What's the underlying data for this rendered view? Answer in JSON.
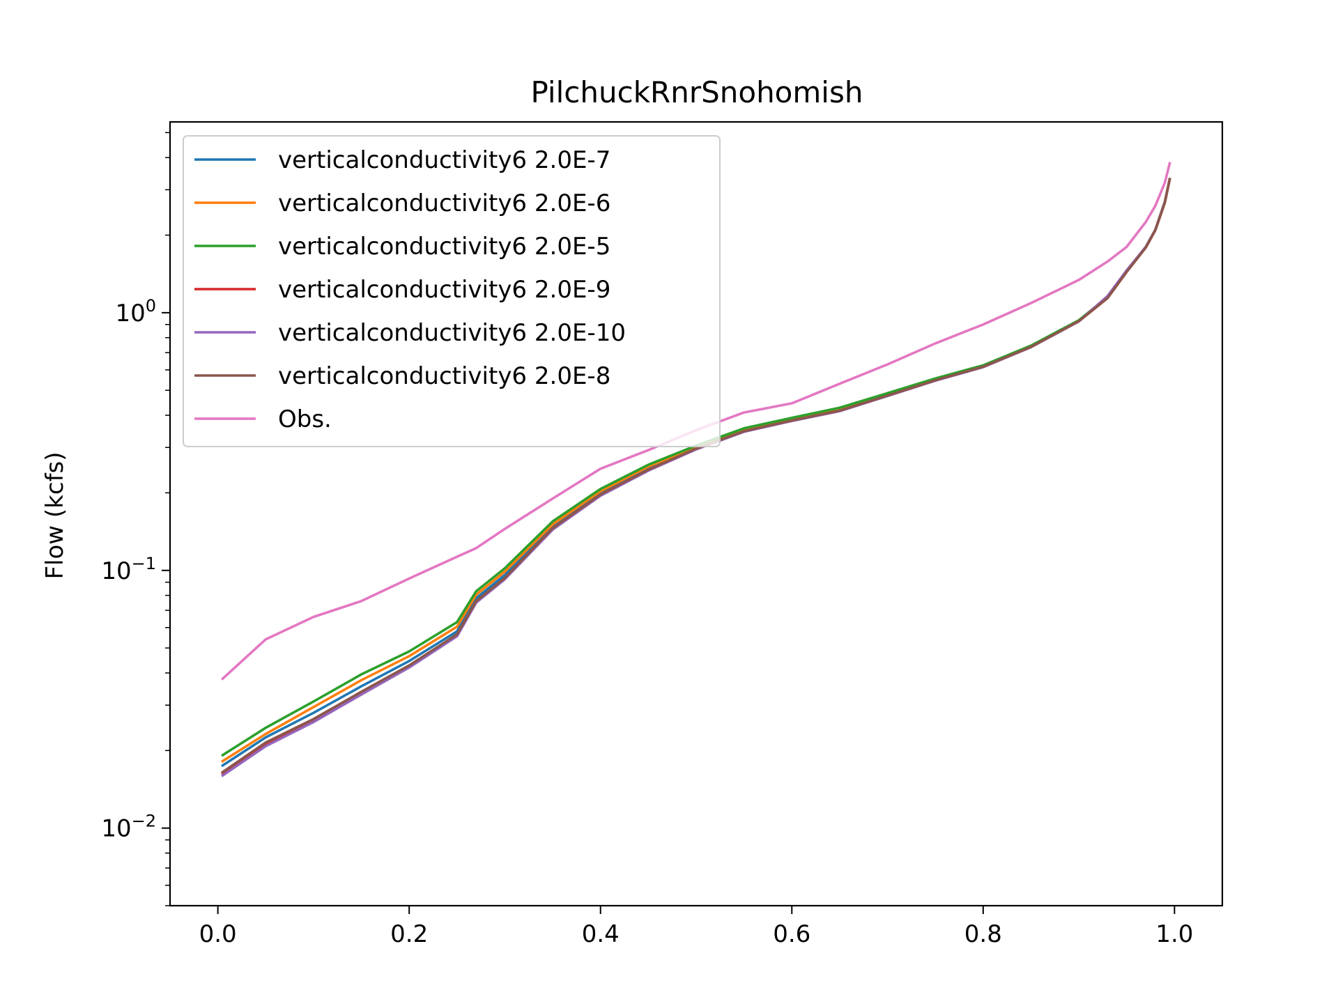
{
  "chart_data": {
    "type": "line",
    "title": "PilchuckRnrSnohomish",
    "xlabel": "",
    "ylabel": "Flow (kcfs)",
    "xlim": [
      -0.05,
      1.05
    ],
    "ylim": [
      0.005,
      5.5
    ],
    "yscale": "log",
    "x_ticks": [
      0.0,
      0.2,
      0.4,
      0.6,
      0.8,
      1.0
    ],
    "x_tick_labels": [
      "0.0",
      "0.2",
      "0.4",
      "0.6",
      "0.8",
      "1.0"
    ],
    "y_ticks": [
      0.01,
      0.1,
      1
    ],
    "y_tick_labels": [
      {
        "base": "10",
        "exp": "−2"
      },
      {
        "base": "10",
        "exp": "−1"
      },
      {
        "base": "10",
        "exp": "0"
      }
    ],
    "grid": false,
    "legend_position": "upper-left",
    "x": [
      0.005,
      0.05,
      0.1,
      0.15,
      0.2,
      0.25,
      0.27,
      0.3,
      0.35,
      0.4,
      0.45,
      0.5,
      0.55,
      0.6,
      0.65,
      0.7,
      0.75,
      0.8,
      0.85,
      0.9,
      0.93,
      0.95,
      0.97,
      0.98,
      0.99,
      0.995
    ],
    "series": [
      {
        "name": "verticalconductivity6 2.0E-7",
        "color": "#1f77b4",
        "values": [
          0.0175,
          0.0225,
          0.028,
          0.0355,
          0.0445,
          0.058,
          0.078,
          0.096,
          0.148,
          0.2,
          0.25,
          0.3,
          0.35,
          0.385,
          0.42,
          0.48,
          0.55,
          0.62,
          0.74,
          0.93,
          1.15,
          1.45,
          1.8,
          2.1,
          2.7,
          3.3
        ]
      },
      {
        "name": "verticalconductivity6 2.0E-6",
        "color": "#ff7f0e",
        "values": [
          0.0182,
          0.0232,
          0.0295,
          0.0375,
          0.0465,
          0.0605,
          0.0805,
          0.099,
          0.151,
          0.203,
          0.253,
          0.302,
          0.352,
          0.387,
          0.422,
          0.482,
          0.552,
          0.622,
          0.742,
          0.932,
          1.15,
          1.45,
          1.8,
          2.1,
          2.7,
          3.3
        ]
      },
      {
        "name": "verticalconductivity6 2.0E-5",
        "color": "#2ca02c",
        "values": [
          0.0192,
          0.0245,
          0.031,
          0.0395,
          0.0485,
          0.063,
          0.083,
          0.102,
          0.155,
          0.207,
          0.257,
          0.305,
          0.356,
          0.391,
          0.428,
          0.487,
          0.556,
          0.625,
          0.745,
          0.935,
          1.15,
          1.45,
          1.8,
          2.1,
          2.7,
          3.3
        ]
      },
      {
        "name": "verticalconductivity6 2.0E-9",
        "color": "#d62728",
        "values": [
          0.0163,
          0.0212,
          0.0262,
          0.0335,
          0.0425,
          0.056,
          0.0755,
          0.093,
          0.145,
          0.196,
          0.245,
          0.296,
          0.346,
          0.381,
          0.416,
          0.476,
          0.546,
          0.616,
          0.736,
          0.926,
          1.14,
          1.44,
          1.79,
          2.09,
          2.68,
          3.3
        ]
      },
      {
        "name": "verticalconductivity6 2.0E-10",
        "color": "#9467bd",
        "values": [
          0.016,
          0.0208,
          0.0258,
          0.033,
          0.042,
          0.0555,
          0.075,
          0.0925,
          0.144,
          0.195,
          0.244,
          0.295,
          0.345,
          0.38,
          0.415,
          0.475,
          0.545,
          0.615,
          0.735,
          0.925,
          1.16,
          1.46,
          1.8,
          2.1,
          2.7,
          3.3
        ]
      },
      {
        "name": "verticalconductivity6 2.0E-8",
        "color": "#8c564b",
        "values": [
          0.0165,
          0.0215,
          0.0265,
          0.0338,
          0.0428,
          0.0565,
          0.076,
          0.0935,
          0.146,
          0.197,
          0.246,
          0.297,
          0.347,
          0.382,
          0.417,
          0.477,
          0.547,
          0.617,
          0.737,
          0.927,
          1.14,
          1.44,
          1.79,
          2.09,
          2.68,
          3.3
        ]
      },
      {
        "name": "Obs.",
        "color": "#e377c2",
        "values": [
          0.038,
          0.054,
          0.066,
          0.076,
          0.093,
          0.113,
          0.122,
          0.145,
          0.19,
          0.248,
          0.293,
          0.35,
          0.41,
          0.445,
          0.53,
          0.63,
          0.76,
          0.9,
          1.09,
          1.34,
          1.58,
          1.8,
          2.25,
          2.6,
          3.2,
          3.8
        ]
      }
    ]
  }
}
